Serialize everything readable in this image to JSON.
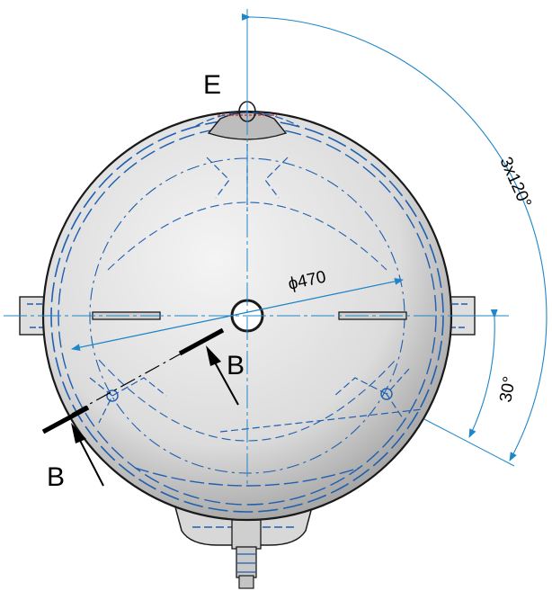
{
  "labels": {
    "detail": "E",
    "section_top": "B",
    "section_bottom": "B"
  },
  "dimensions": {
    "diameter": "ϕ470",
    "angle_pattern": "3x120°",
    "angle_offset": "30°"
  },
  "colors": {
    "sphere_fill": "#e6e6e6",
    "sphere_edge": "#1a1a1a",
    "hidden_line": "#1f5fb0",
    "dimension_line": "#1f86c8",
    "section_line": "#000000"
  }
}
